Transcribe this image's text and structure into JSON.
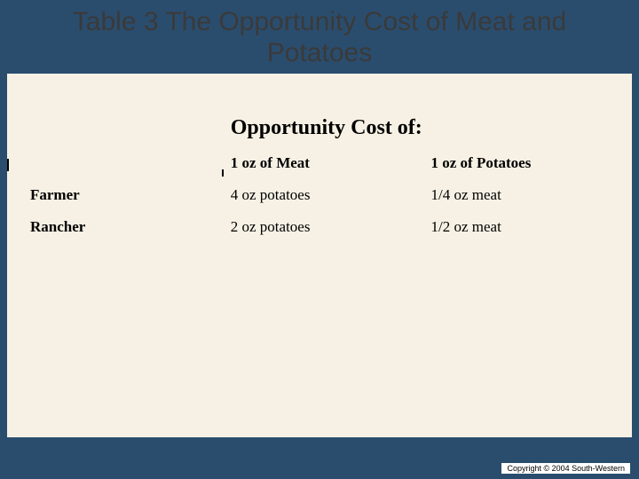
{
  "slide": {
    "background_color": "#2a4d6e",
    "panel_color": "#f6f1e4",
    "title": "Table 3 The Opportunity Cost of Meat and Potatoes",
    "title_color": "#3a3a3a",
    "title_fontsize": 30
  },
  "table": {
    "type": "table",
    "spanning_header": "Opportunity Cost of:",
    "spanning_header_fontsize": 24,
    "columns": [
      "",
      "1 oz of Meat",
      "1 oz of Potatoes"
    ],
    "rows": [
      {
        "label": "Farmer",
        "cells": [
          "4 oz potatoes",
          "1/4 oz meat"
        ]
      },
      {
        "label": "Rancher",
        "cells": [
          "2 oz potatoes",
          "1/2 oz meat"
        ]
      }
    ],
    "header_fontsize": 17,
    "cell_fontsize": 17,
    "font_family": "Times New Roman",
    "text_color": "#000000",
    "column_widths_pct": [
      34,
      34,
      32
    ]
  },
  "footer": {
    "copyright": "Copyright © 2004  South-Western",
    "background": "#ffffff",
    "fontsize": 9
  }
}
